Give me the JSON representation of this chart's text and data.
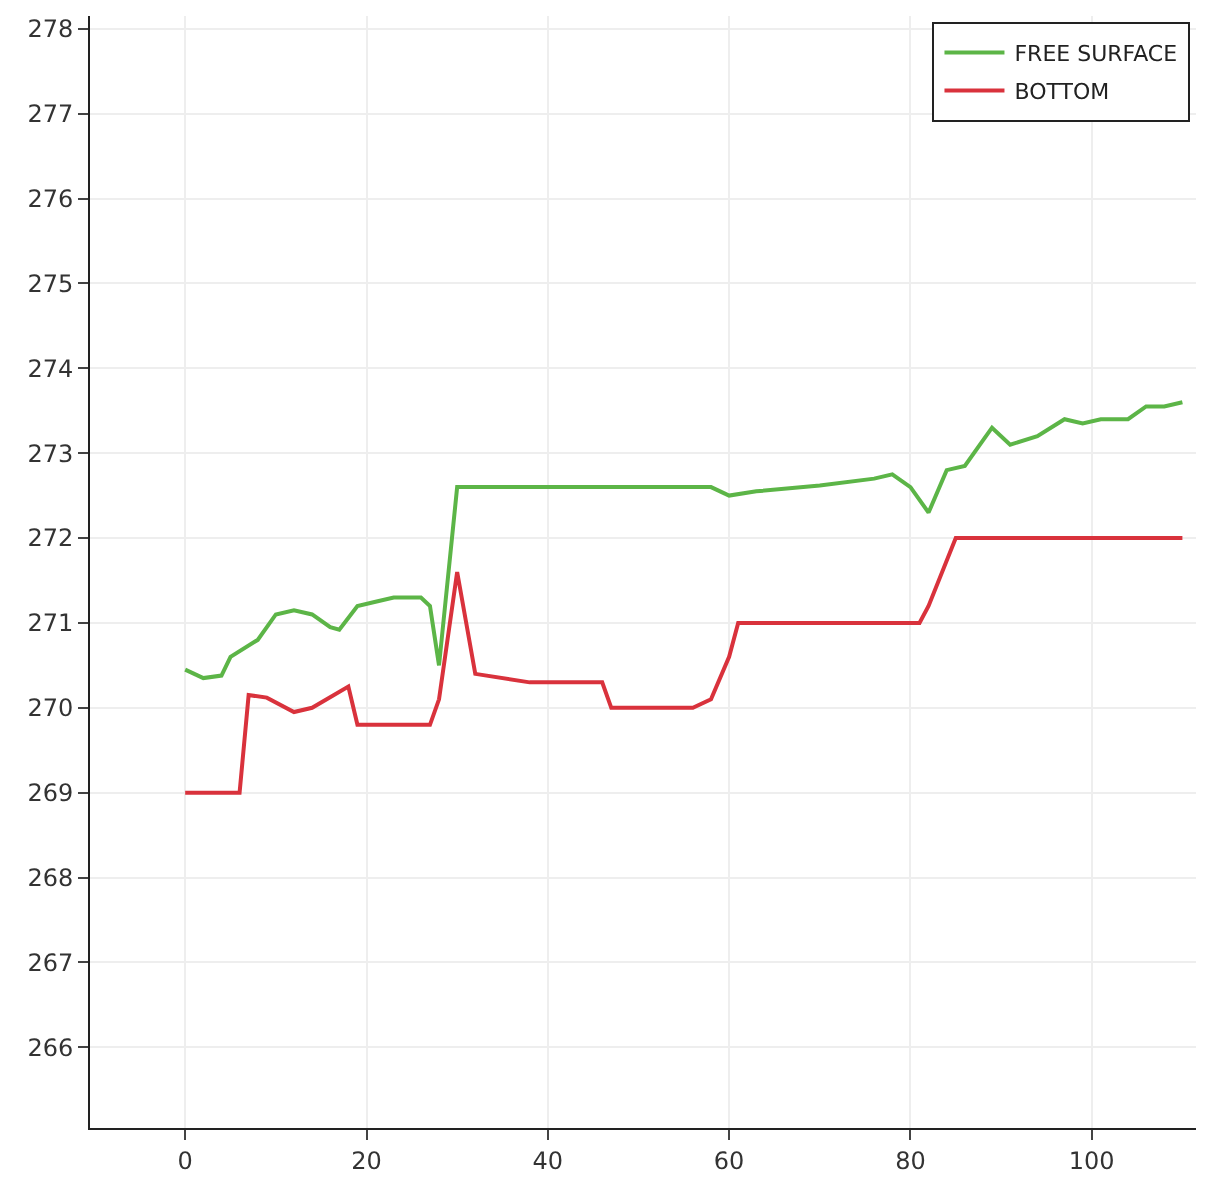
{
  "chart_data": {
    "type": "line",
    "xlim": [
      -10.5,
      111.5
    ],
    "xticks": [
      0,
      20,
      40,
      60,
      80,
      100
    ],
    "ylim": [
      265.05,
      278.15
    ],
    "yticks": [
      266,
      267,
      268,
      269,
      270,
      271,
      272,
      273,
      274,
      275,
      276,
      277,
      278
    ],
    "grid": true,
    "legend": "top right",
    "line_style": "solid",
    "marker": "none",
    "series": [
      {
        "name": "FREE SURFACE",
        "color": "#5cb547",
        "x": [
          0,
          2,
          4,
          5,
          8,
          10,
          12,
          14,
          16,
          17,
          19,
          21,
          23,
          26,
          27,
          28,
          30,
          35,
          40,
          50,
          58,
          60,
          63,
          70,
          76,
          78,
          80,
          82,
          84,
          86,
          88,
          89,
          91,
          94,
          97,
          99,
          101,
          104,
          106,
          108,
          110
        ],
        "values": [
          270.45,
          270.35,
          270.38,
          270.6,
          270.8,
          271.1,
          271.15,
          271.1,
          270.95,
          270.92,
          271.2,
          271.25,
          271.3,
          271.3,
          271.2,
          270.5,
          272.6,
          272.6,
          272.6,
          272.6,
          272.6,
          272.5,
          272.55,
          272.62,
          272.7,
          272.75,
          272.6,
          272.3,
          272.8,
          272.85,
          273.15,
          273.3,
          273.1,
          273.2,
          273.4,
          273.35,
          273.4,
          273.4,
          273.55,
          273.55,
          273.6
        ]
      },
      {
        "name": "BOTTOM",
        "color": "#d9323c",
        "x": [
          0,
          6,
          7,
          9,
          12,
          14,
          18,
          19,
          27,
          28,
          30,
          32,
          38,
          46,
          47,
          56,
          58,
          60,
          61,
          81,
          82,
          85,
          110
        ],
        "values": [
          269,
          269,
          270.15,
          270.12,
          269.95,
          270.0,
          270.25,
          269.8,
          269.8,
          270.1,
          271.6,
          270.4,
          270.3,
          270.3,
          270.0,
          270.0,
          270.1,
          270.6,
          271.0,
          271.0,
          271.2,
          272.0,
          272.0
        ]
      }
    ]
  }
}
